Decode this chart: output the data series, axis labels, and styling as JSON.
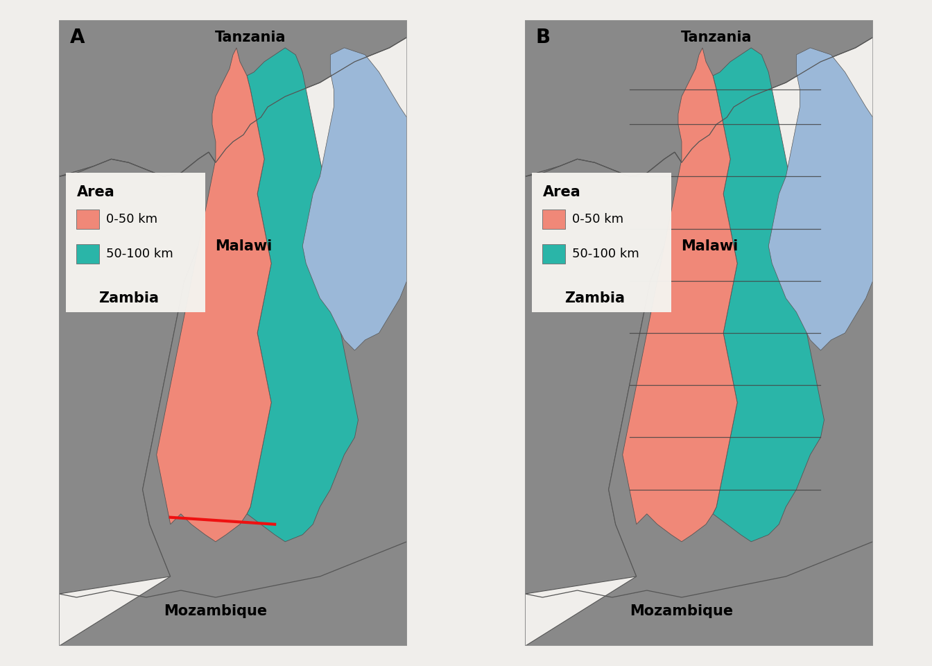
{
  "panel_A_label": "A",
  "panel_B_label": "B",
  "bg_color": "#f0eeeb",
  "map_bg": "#898989",
  "color_0_50": "#F08878",
  "color_50_100": "#2AB5A8",
  "lake_color": "#9BB8D8",
  "country_border_color": "#555555",
  "bin_line_color": "#444444",
  "legend_title": "Area",
  "legend_0_50": "0-50 km",
  "legend_50_100": "50-100 km",
  "label_tanzania": "Tanzania",
  "label_malawi": "Malawi",
  "label_zambia": "Zambia",
  "label_mozambique": "Mozambique",
  "red_line_color": "#EE1111",
  "panel_label_fontsize": 20,
  "country_label_fontsize": 15,
  "legend_fontsize": 13
}
